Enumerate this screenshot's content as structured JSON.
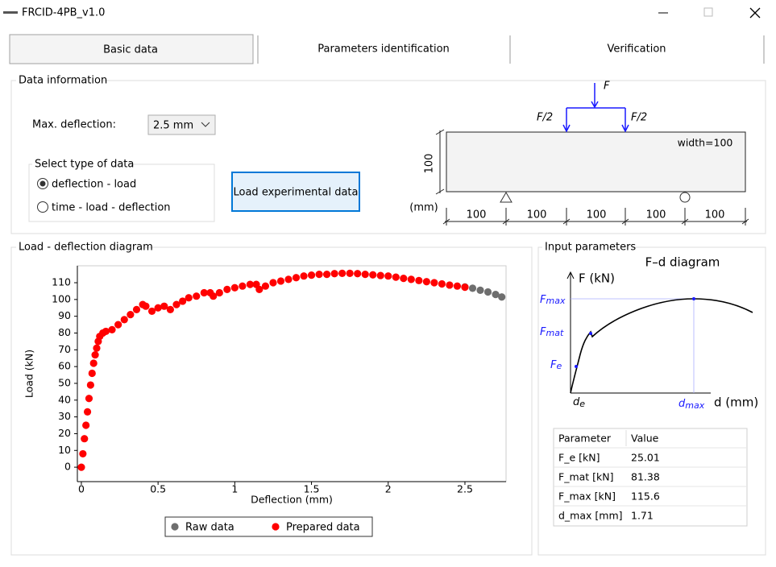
{
  "window": {
    "title": "FRCID-4PB_v1.0"
  },
  "tabs": [
    "Basic data",
    "Parameters identification",
    "Verification"
  ],
  "data_information": {
    "title": "Data information",
    "max_deflection_label": "Max. deflection:",
    "max_deflection_value": "2.5 mm",
    "data_type_title": "Select type of data",
    "data_types": [
      "deflection - load",
      "time - load - deflection"
    ],
    "load_button": "Load experimental data"
  },
  "beam": {
    "force": "F",
    "half_forces": [
      "F/2",
      "F/2"
    ],
    "width": "width=100",
    "height": "100",
    "unit": "(mm)",
    "spans": [
      "100",
      "100",
      "100",
      "100",
      "100"
    ]
  },
  "chart_panel_title": "Load - deflection diagram",
  "chart_data": {
    "type": "scatter",
    "x_label": "Deflection (mm)",
    "y_label": "Load (kN)",
    "xlim": [
      -0.026,
      2.768
    ],
    "ylim": [
      -8.6,
      120.1
    ],
    "xticks": [
      0,
      0.5,
      1,
      1.5,
      2,
      2.5
    ],
    "yticks": [
      0,
      10,
      20,
      30,
      40,
      50,
      60,
      70,
      80,
      90,
      100,
      110
    ],
    "grid": false,
    "legend": "bottom",
    "series": [
      {
        "name": "Raw data",
        "color": "#6e6e6e",
        "x": [
          2.5,
          2.55,
          2.6,
          2.65,
          2.7,
          2.74
        ],
        "values": [
          107.5,
          106.7,
          105.5,
          104.5,
          103,
          101.5
        ]
      },
      {
        "name": "Prepared data",
        "color": "#ff0000",
        "x": [
          0,
          0.01,
          0.02,
          0.03,
          0.04,
          0.05,
          0.06,
          0.07,
          0.08,
          0.09,
          0.1,
          0.11,
          0.12,
          0.14,
          0.16,
          0.2,
          0.24,
          0.28,
          0.32,
          0.36,
          0.4,
          0.42,
          0.46,
          0.5,
          0.54,
          0.58,
          0.62,
          0.66,
          0.7,
          0.75,
          0.8,
          0.84,
          0.86,
          0.9,
          0.95,
          1.0,
          1.05,
          1.1,
          1.14,
          1.16,
          1.2,
          1.25,
          1.3,
          1.35,
          1.4,
          1.45,
          1.5,
          1.55,
          1.6,
          1.65,
          1.7,
          1.75,
          1.8,
          1.85,
          1.9,
          1.95,
          2.0,
          2.05,
          2.1,
          2.15,
          2.2,
          2.25,
          2.3,
          2.35,
          2.4,
          2.45,
          2.5
        ],
        "values": [
          0,
          8,
          17,
          25,
          33,
          41,
          49,
          56,
          62,
          67,
          71,
          75,
          78,
          80,
          81,
          82,
          85,
          88,
          91,
          94,
          97,
          96,
          93,
          95,
          96,
          94,
          97,
          99,
          101,
          102,
          104,
          104,
          102,
          104,
          106,
          107,
          108,
          109,
          109,
          106,
          108,
          110,
          111,
          112,
          113,
          114,
          114.5,
          115,
          115,
          115.4,
          115.6,
          115.6,
          115.4,
          115,
          114.7,
          114.3,
          114,
          113.3,
          112.6,
          112,
          111.3,
          110.6,
          110,
          109.3,
          108.6,
          108,
          107.3
        ]
      }
    ]
  },
  "input_parameters": {
    "title": "Input parameters",
    "diagram": {
      "title": "F–d diagram",
      "y_axis": "F (kN)",
      "x_axis": "d (mm)",
      "labels": [
        {
          "main": "F",
          "sub": "max"
        },
        {
          "main": "F",
          "sub": "mat"
        },
        {
          "main": "F",
          "sub": "e"
        },
        {
          "main": "d",
          "sub": "e"
        },
        {
          "main": "d",
          "sub": "max"
        }
      ]
    },
    "table": {
      "header": [
        "Parameter",
        "Value"
      ],
      "rows": [
        [
          "F_e [kN]",
          "25.01"
        ],
        [
          "F_mat [kN]",
          "81.38"
        ],
        [
          "F_max [kN]",
          "115.6"
        ],
        [
          "d_max [mm]",
          "1.71"
        ]
      ]
    }
  }
}
